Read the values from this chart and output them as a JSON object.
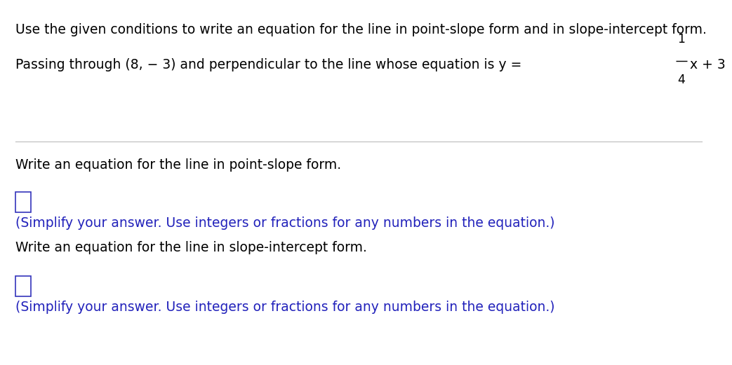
{
  "bg_color": "#ffffff",
  "text_color": "#000000",
  "blue_color": "#2222bb",
  "line1": "Use the given conditions to write an equation for the line in point-slope form and in slope-intercept form.",
  "line2_prefix": "Passing through (8, − 3) and perpendicular to the line whose equation is y = ",
  "fraction_num": "1",
  "fraction_den": "4",
  "line2_suffix": "x + 3",
  "write_ps": "Write an equation for the line in point-slope form.",
  "hint_text": "(Simplify your answer. Use integers or fractions for any numbers in the equation.)",
  "write_si": "Write an equation for the line in slope-intercept form.",
  "font_size_main": 13.5,
  "font_size_hint": 13.5,
  "box_color": "#3333bb"
}
